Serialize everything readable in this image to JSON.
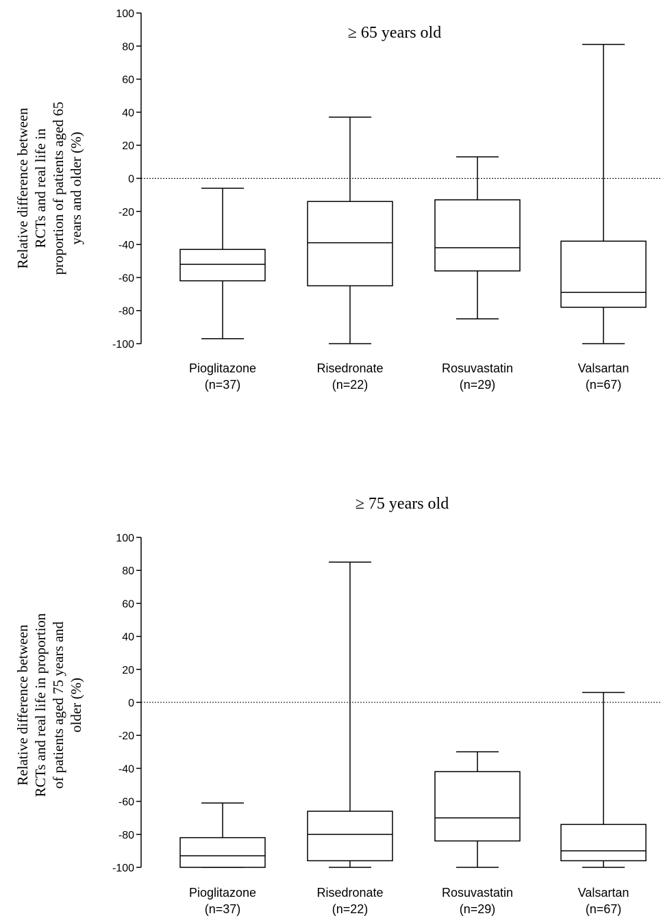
{
  "chart_data": [
    {
      "type": "box",
      "title": "≥ 65 years old",
      "ylabel_lines": [
        "Relative difference between",
        "RCTs and real life in",
        "proportion of patients aged 65",
        "years and older (%)"
      ],
      "ylim": [
        -100,
        100
      ],
      "yticks": [
        100,
        80,
        60,
        40,
        20,
        0,
        -20,
        -40,
        -60,
        -80,
        -100
      ],
      "reference_line": 0,
      "categories": [
        {
          "name": "Pioglitazone",
          "n": "(n=37)"
        },
        {
          "name": "Risedronate",
          "n": "(n=22)"
        },
        {
          "name": "Rosuvastatin",
          "n": "(n=29)"
        },
        {
          "name": "Valsartan",
          "n": "(n=67)"
        }
      ],
      "boxes": [
        {
          "min": -97,
          "q1": -62,
          "median": -52,
          "q3": -43,
          "max": -6
        },
        {
          "min": -100,
          "q1": -65,
          "median": -39,
          "q3": -14,
          "max": 37
        },
        {
          "min": -85,
          "q1": -56,
          "median": -42,
          "q3": -13,
          "max": 13
        },
        {
          "min": -100,
          "q1": -78,
          "median": -69,
          "q3": -38,
          "max": 81
        }
      ]
    },
    {
      "type": "box",
      "title": "≥ 75 years old",
      "ylabel_lines": [
        "Relative difference between",
        "RCTs and real life in proportion",
        "of patients aged 75 years and",
        "older (%)"
      ],
      "ylim": [
        -100,
        100
      ],
      "yticks": [
        100,
        80,
        60,
        40,
        20,
        0,
        -20,
        -40,
        -60,
        -80,
        -100
      ],
      "reference_line": 0,
      "categories": [
        {
          "name": "Pioglitazone",
          "n": "(n=37)"
        },
        {
          "name": "Risedronate",
          "n": "(n=22)"
        },
        {
          "name": "Rosuvastatin",
          "n": "(n=29)"
        },
        {
          "name": "Valsartan",
          "n": "(n=67)"
        }
      ],
      "boxes": [
        {
          "min": -100,
          "q1": -100,
          "median": -93,
          "q3": -82,
          "max": -61
        },
        {
          "min": -100,
          "q1": -96,
          "median": -80,
          "q3": -66,
          "max": 85
        },
        {
          "min": -100,
          "q1": -84,
          "median": -70,
          "q3": -42,
          "max": -30
        },
        {
          "min": -100,
          "q1": -96,
          "median": -90,
          "q3": -74,
          "max": 6
        }
      ]
    }
  ]
}
